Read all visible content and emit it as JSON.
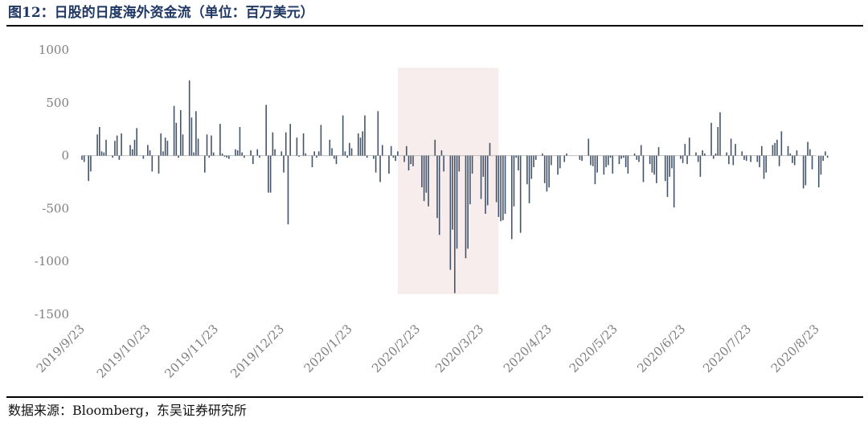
{
  "figure": {
    "title": "图12：日股的日度海外资金流（单位：百万美元）",
    "source": "数据来源：Bloomberg，东吴证券研究所"
  },
  "colors": {
    "bar": "#44546a",
    "highlight": "#f8eded",
    "axis": "#bfbfbf",
    "tick_text": "#7f7f7f"
  },
  "chart_data": {
    "type": "bar",
    "ylim": [
      -1500,
      1000
    ],
    "yticks": [
      "1000",
      "500",
      "0",
      "-500",
      "-1000",
      "-1500"
    ],
    "xticks": [
      "2019/9/23",
      "2019/10/23",
      "2019/11/23",
      "2019/12/23",
      "2020/1/23",
      "2020/2/23",
      "2020/3/23",
      "2020/4/23",
      "2020/5/23",
      "2020/6/23",
      "2020/7/23",
      "2020/8/23"
    ],
    "x_start": "2019/9/23",
    "highlight_range": [
      "2020/2/14",
      "2020/3/31"
    ],
    "bars": [
      [
        "2019/9/23",
        -40
      ],
      [
        "2019/9/24",
        -60
      ],
      [
        "2019/9/26",
        -240
      ],
      [
        "2019/9/27",
        -150
      ],
      [
        "2019/9/30",
        200
      ],
      [
        "2019/10/1",
        270
      ],
      [
        "2019/10/2",
        40
      ],
      [
        "2019/10/3",
        30
      ],
      [
        "2019/10/4",
        150
      ],
      [
        "2019/10/7",
        -20
      ],
      [
        "2019/10/8",
        140
      ],
      [
        "2019/10/9",
        190
      ],
      [
        "2019/10/10",
        -40
      ],
      [
        "2019/10/11",
        210
      ],
      [
        "2019/10/15",
        100
      ],
      [
        "2019/10/16",
        60
      ],
      [
        "2019/10/17",
        150
      ],
      [
        "2019/10/18",
        260
      ],
      [
        "2019/10/21",
        -30
      ],
      [
        "2019/10/23",
        100
      ],
      [
        "2019/10/24",
        50
      ],
      [
        "2019/10/25",
        -150
      ],
      [
        "2019/10/28",
        -170
      ],
      [
        "2019/10/29",
        210
      ],
      [
        "2019/10/30",
        40
      ],
      [
        "2019/10/31",
        170
      ],
      [
        "2019/11/1",
        140
      ],
      [
        "2019/11/4",
        470
      ],
      [
        "2019/11/5",
        310
      ],
      [
        "2019/11/6",
        -20
      ],
      [
        "2019/11/7",
        430
      ],
      [
        "2019/11/8",
        200
      ],
      [
        "2019/11/11",
        710
      ],
      [
        "2019/11/12",
        360
      ],
      [
        "2019/11/13",
        30
      ],
      [
        "2019/11/14",
        420
      ],
      [
        "2019/11/15",
        160
      ],
      [
        "2019/11/18",
        -160
      ],
      [
        "2019/11/19",
        200
      ],
      [
        "2019/11/20",
        -20
      ],
      [
        "2019/11/21",
        190
      ],
      [
        "2019/11/22",
        30
      ],
      [
        "2019/11/25",
        300
      ],
      [
        "2019/11/26",
        20
      ],
      [
        "2019/11/27",
        -10
      ],
      [
        "2019/11/28",
        -20
      ],
      [
        "2019/11/29",
        -30
      ],
      [
        "2019/12/2",
        60
      ],
      [
        "2019/12/3",
        50
      ],
      [
        "2019/12/4",
        270
      ],
      [
        "2019/12/5",
        30
      ],
      [
        "2019/12/6",
        -20
      ],
      [
        "2019/12/9",
        50
      ],
      [
        "2019/12/10",
        -80
      ],
      [
        "2019/12/12",
        60
      ],
      [
        "2019/12/13",
        -20
      ],
      [
        "2019/12/16",
        480
      ],
      [
        "2019/12/17",
        -350
      ],
      [
        "2019/12/18",
        -350
      ],
      [
        "2019/12/19",
        220
      ],
      [
        "2019/12/20",
        60
      ],
      [
        "2019/12/23",
        40
      ],
      [
        "2019/12/24",
        -160
      ],
      [
        "2019/12/25",
        220
      ],
      [
        "2019/12/26",
        -650
      ],
      [
        "2019/12/27",
        300
      ],
      [
        "2019/12/30",
        170
      ],
      [
        "2019/12/31",
        -10
      ],
      [
        "2020/1/2",
        210
      ],
      [
        "2020/1/3",
        20
      ],
      [
        "2020/1/6",
        -110
      ],
      [
        "2020/1/7",
        40
      ],
      [
        "2020/1/8",
        -20
      ],
      [
        "2020/1/9",
        40
      ],
      [
        "2020/1/10",
        290
      ],
      [
        "2020/1/14",
        150
      ],
      [
        "2020/1/15",
        70
      ],
      [
        "2020/1/16",
        -30
      ],
      [
        "2020/1/17",
        -80
      ],
      [
        "2020/1/20",
        380
      ],
      [
        "2020/1/21",
        40
      ],
      [
        "2020/1/22",
        -20
      ],
      [
        "2020/1/23",
        120
      ],
      [
        "2020/1/24",
        70
      ],
      [
        "2020/1/27",
        210
      ],
      [
        "2020/1/28",
        170
      ],
      [
        "2020/1/29",
        230
      ],
      [
        "2020/1/30",
        380
      ],
      [
        "2020/1/31",
        -20
      ],
      [
        "2020/2/3",
        -30
      ],
      [
        "2020/2/4",
        -160
      ],
      [
        "2020/2/5",
        420
      ],
      [
        "2020/2/6",
        -250
      ],
      [
        "2020/2/7",
        100
      ],
      [
        "2020/2/10",
        -170
      ],
      [
        "2020/2/11",
        90
      ],
      [
        "2020/2/12",
        -20
      ],
      [
        "2020/2/13",
        -50
      ],
      [
        "2020/2/14",
        40
      ],
      [
        "2020/2/17",
        -60
      ],
      [
        "2020/2/18",
        90
      ],
      [
        "2020/2/19",
        -140
      ],
      [
        "2020/2/20",
        -80
      ],
      [
        "2020/2/21",
        -100
      ],
      [
        "2020/2/25",
        -300
      ],
      [
        "2020/2/26",
        -430
      ],
      [
        "2020/2/27",
        -350
      ],
      [
        "2020/2/28",
        -480
      ],
      [
        "2020/3/2",
        150
      ],
      [
        "2020/3/3",
        -590
      ],
      [
        "2020/3/4",
        -750
      ],
      [
        "2020/3/5",
        50
      ],
      [
        "2020/3/6",
        -150
      ],
      [
        "2020/3/9",
        -1080
      ],
      [
        "2020/3/10",
        -700
      ],
      [
        "2020/3/11",
        -1300
      ],
      [
        "2020/3/12",
        -880
      ],
      [
        "2020/3/13",
        -150
      ],
      [
        "2020/3/16",
        -970
      ],
      [
        "2020/3/17",
        -880
      ],
      [
        "2020/3/18",
        -460
      ],
      [
        "2020/3/19",
        -170
      ],
      [
        "2020/3/23",
        -410
      ],
      [
        "2020/3/24",
        -200
      ],
      [
        "2020/3/25",
        -550
      ],
      [
        "2020/3/26",
        -470
      ],
      [
        "2020/3/27",
        120
      ],
      [
        "2020/3/30",
        -440
      ],
      [
        "2020/3/31",
        -580
      ],
      [
        "2020/4/1",
        -620
      ],
      [
        "2020/4/2",
        -610
      ],
      [
        "2020/4/3",
        -550
      ],
      [
        "2020/4/6",
        -790
      ],
      [
        "2020/4/7",
        -480
      ],
      [
        "2020/4/8",
        -20
      ],
      [
        "2020/4/9",
        -140
      ],
      [
        "2020/4/10",
        -730
      ],
      [
        "2020/4/13",
        -270
      ],
      [
        "2020/4/14",
        -450
      ],
      [
        "2020/4/15",
        -220
      ],
      [
        "2020/4/16",
        -110
      ],
      [
        "2020/4/17",
        -40
      ],
      [
        "2020/4/20",
        20
      ],
      [
        "2020/4/21",
        -260
      ],
      [
        "2020/4/22",
        -340
      ],
      [
        "2020/4/23",
        -300
      ],
      [
        "2020/4/24",
        -90
      ],
      [
        "2020/4/27",
        -180
      ],
      [
        "2020/4/28",
        -120
      ],
      [
        "2020/4/30",
        -60
      ],
      [
        "2020/5/1",
        20
      ],
      [
        "2020/5/7",
        -40
      ],
      [
        "2020/5/8",
        -50
      ],
      [
        "2020/5/11",
        160
      ],
      [
        "2020/5/12",
        -90
      ],
      [
        "2020/5/13",
        -100
      ],
      [
        "2020/5/14",
        -270
      ],
      [
        "2020/5/15",
        -160
      ],
      [
        "2020/5/18",
        -180
      ],
      [
        "2020/5/19",
        -110
      ],
      [
        "2020/5/20",
        -90
      ],
      [
        "2020/5/21",
        -20
      ],
      [
        "2020/5/22",
        -170
      ],
      [
        "2020/5/25",
        -80
      ],
      [
        "2020/5/26",
        -30
      ],
      [
        "2020/5/27",
        -20
      ],
      [
        "2020/5/28",
        -110
      ],
      [
        "2020/5/29",
        -170
      ],
      [
        "2020/6/1",
        20
      ],
      [
        "2020/6/2",
        -40
      ],
      [
        "2020/6/3",
        -60
      ],
      [
        "2020/6/4",
        100
      ],
      [
        "2020/6/5",
        -250
      ],
      [
        "2020/6/8",
        -80
      ],
      [
        "2020/6/9",
        -160
      ],
      [
        "2020/6/10",
        -180
      ],
      [
        "2020/6/11",
        -260
      ],
      [
        "2020/6/12",
        80
      ],
      [
        "2020/6/15",
        -240
      ],
      [
        "2020/6/16",
        -390
      ],
      [
        "2020/6/17",
        -200
      ],
      [
        "2020/6/18",
        -120
      ],
      [
        "2020/6/19",
        -490
      ],
      [
        "2020/6/22",
        -30
      ],
      [
        "2020/6/23",
        -70
      ],
      [
        "2020/6/24",
        110
      ],
      [
        "2020/6/25",
        -80
      ],
      [
        "2020/6/26",
        170
      ],
      [
        "2020/6/29",
        30
      ],
      [
        "2020/6/30",
        -60
      ],
      [
        "2020/7/1",
        -200
      ],
      [
        "2020/7/2",
        50
      ],
      [
        "2020/7/3",
        20
      ],
      [
        "2020/7/6",
        310
      ],
      [
        "2020/7/7",
        -30
      ],
      [
        "2020/7/8",
        20
      ],
      [
        "2020/7/9",
        270
      ],
      [
        "2020/7/10",
        410
      ],
      [
        "2020/7/13",
        30
      ],
      [
        "2020/7/14",
        -80
      ],
      [
        "2020/7/15",
        160
      ],
      [
        "2020/7/16",
        -90
      ],
      [
        "2020/7/17",
        110
      ],
      [
        "2020/7/20",
        40
      ],
      [
        "2020/7/21",
        -40
      ],
      [
        "2020/7/22",
        -50
      ],
      [
        "2020/7/24",
        -60
      ],
      [
        "2020/7/27",
        -60
      ],
      [
        "2020/7/28",
        -110
      ],
      [
        "2020/7/29",
        90
      ],
      [
        "2020/7/30",
        -220
      ],
      [
        "2020/7/31",
        -160
      ],
      [
        "2020/8/3",
        100
      ],
      [
        "2020/8/4",
        120
      ],
      [
        "2020/8/5",
        150
      ],
      [
        "2020/8/6",
        -100
      ],
      [
        "2020/8/7",
        230
      ],
      [
        "2020/8/10",
        90
      ],
      [
        "2020/8/11",
        20
      ],
      [
        "2020/8/12",
        -70
      ],
      [
        "2020/8/13",
        -90
      ],
      [
        "2020/8/14",
        50
      ],
      [
        "2020/8/17",
        -310
      ],
      [
        "2020/8/18",
        -280
      ],
      [
        "2020/8/19",
        130
      ],
      [
        "2020/8/20",
        60
      ],
      [
        "2020/8/21",
        -130
      ],
      [
        "2020/8/24",
        -300
      ],
      [
        "2020/8/25",
        -180
      ],
      [
        "2020/8/26",
        -50
      ],
      [
        "2020/8/27",
        40
      ],
      [
        "2020/8/28",
        -20
      ]
    ]
  }
}
